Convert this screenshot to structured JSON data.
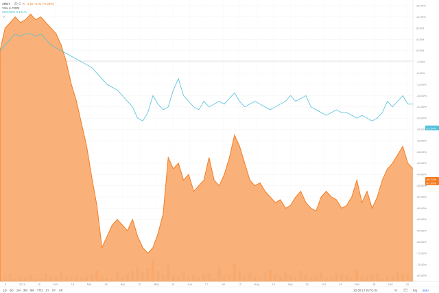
{
  "header": {
    "symbol": "AREY",
    "price_text": "2.87 -0.01 (-0.49%)",
    "vol_text": "VOL 2.799M",
    "index_text": "SML2001 0.101%"
  },
  "timeframes": [
    "1D",
    "5D",
    "1M",
    "3M",
    "6M",
    "YTD",
    "1Y",
    "5Y",
    "All"
  ],
  "footer": {
    "clock": "10:30:17 (UTC-5)",
    "pct_btn": "%",
    "log_btn": "log",
    "auto_btn": "auto"
  },
  "colors": {
    "area_fill": "#f8a86a",
    "area_line": "#f47b20",
    "compare_line": "#4fc0d8",
    "volume_bar": "#b4b4b4",
    "volume_bar_alt": "#f48f54",
    "badge_orange": "#f47b20",
    "badge_blue": "#4fc0d8"
  },
  "chart_data": {
    "type": "area",
    "x_ticks": [
      "9",
      "2019",
      "16",
      "Feb",
      "18",
      "Mar",
      "18",
      "Apr",
      "15",
      "May",
      "13",
      "Jun",
      "17",
      "Jul",
      "15",
      "Aug",
      "19",
      "Sep",
      "16",
      "Oct",
      "14",
      "Nov",
      "18",
      "Dec",
      "16"
    ],
    "y_ticks": [
      "16.00%",
      "12.00%",
      "8.00%",
      "4.00%",
      "0.00%",
      "-4.00%",
      "-8.00%",
      "-12.00%",
      "-16.00%",
      "-20.00%",
      "-24.00%",
      "-28.00%",
      "-32.00%",
      "-36.00%",
      "-40.00%",
      "-44.00%",
      "-48.00%",
      "-52.00%",
      "-56.00%",
      "-60.00%",
      "-64.00%",
      "-68.00%",
      "-72.00%",
      "-76.00%",
      "-80.00%"
    ],
    "ylim": [
      -82,
      18
    ],
    "y_unit": "%",
    "last_value_labels": {
      "compare": "-19.64%",
      "main": "-40.72%",
      "main_sub": "-41.99%"
    },
    "series": [
      {
        "role": "main",
        "style": "area",
        "values": [
          0,
          8,
          10,
          12,
          10,
          11,
          13,
          11,
          12,
          10,
          8,
          6,
          2,
          -4,
          -12,
          -18,
          -26,
          -34,
          -45,
          -55,
          -70,
          -66,
          -62,
          -60,
          -62,
          -64,
          -60,
          -66,
          -70,
          -72,
          -70,
          -65,
          -58,
          -38,
          -42,
          -40,
          -46,
          -44,
          -50,
          -48,
          -46,
          -38,
          -46,
          -48,
          -44,
          -38,
          -30,
          -34,
          -40,
          -46,
          -48,
          -47,
          -50,
          -52,
          -54,
          -53,
          -56,
          -55,
          -52,
          -50,
          -54,
          -56,
          -57,
          -52,
          -50,
          -52,
          -53,
          -56,
          -55,
          -52,
          -46,
          -54,
          -50,
          -56,
          -52,
          -46,
          -42,
          -40,
          -37,
          -34,
          -40,
          -42
        ]
      },
      {
        "role": "compare",
        "style": "line",
        "values": [
          0,
          2,
          4,
          6,
          5,
          6,
          6,
          5,
          6,
          4,
          2,
          1,
          0,
          -1,
          -2,
          -3,
          -4,
          -5,
          -6,
          -8,
          -10,
          -12,
          -13,
          -14,
          -16,
          -18,
          -20,
          -24,
          -25,
          -22,
          -16,
          -19,
          -21,
          -20,
          -14,
          -10,
          -16,
          -18,
          -20,
          -21,
          -18,
          -20,
          -19,
          -18,
          -19,
          -17,
          -15,
          -18,
          -20,
          -19,
          -18,
          -19,
          -20,
          -21,
          -20,
          -19,
          -18,
          -16,
          -18,
          -17,
          -16,
          -20,
          -21,
          -22,
          -23,
          -22,
          -21,
          -22,
          -22,
          -23,
          -24,
          -23,
          -24,
          -25,
          -24,
          -22,
          -18,
          -20,
          -18,
          -16,
          -19,
          -19
        ]
      }
    ],
    "volume": [
      2,
      3,
      6,
      2,
      4,
      3,
      5,
      2,
      3,
      7,
      4,
      3,
      8,
      4,
      3,
      5,
      3,
      4,
      6,
      9,
      5,
      3,
      2,
      8,
      4,
      6,
      9,
      12,
      7,
      11,
      18,
      9,
      6,
      14,
      5,
      4,
      8,
      3,
      5,
      4,
      6,
      7,
      3,
      12,
      4,
      6,
      15,
      9,
      5,
      7,
      4,
      3,
      8,
      10,
      6,
      4,
      7,
      5,
      3,
      9,
      6,
      4,
      5,
      8,
      3,
      4,
      7,
      6,
      5,
      3,
      10,
      5,
      4,
      6,
      7,
      3,
      4,
      5,
      8,
      6,
      7,
      4
    ],
    "volume_highlight": [
      11,
      19,
      30,
      46,
      53,
      70,
      79
    ],
    "volume_ylim": [
      0,
      40
    ]
  }
}
